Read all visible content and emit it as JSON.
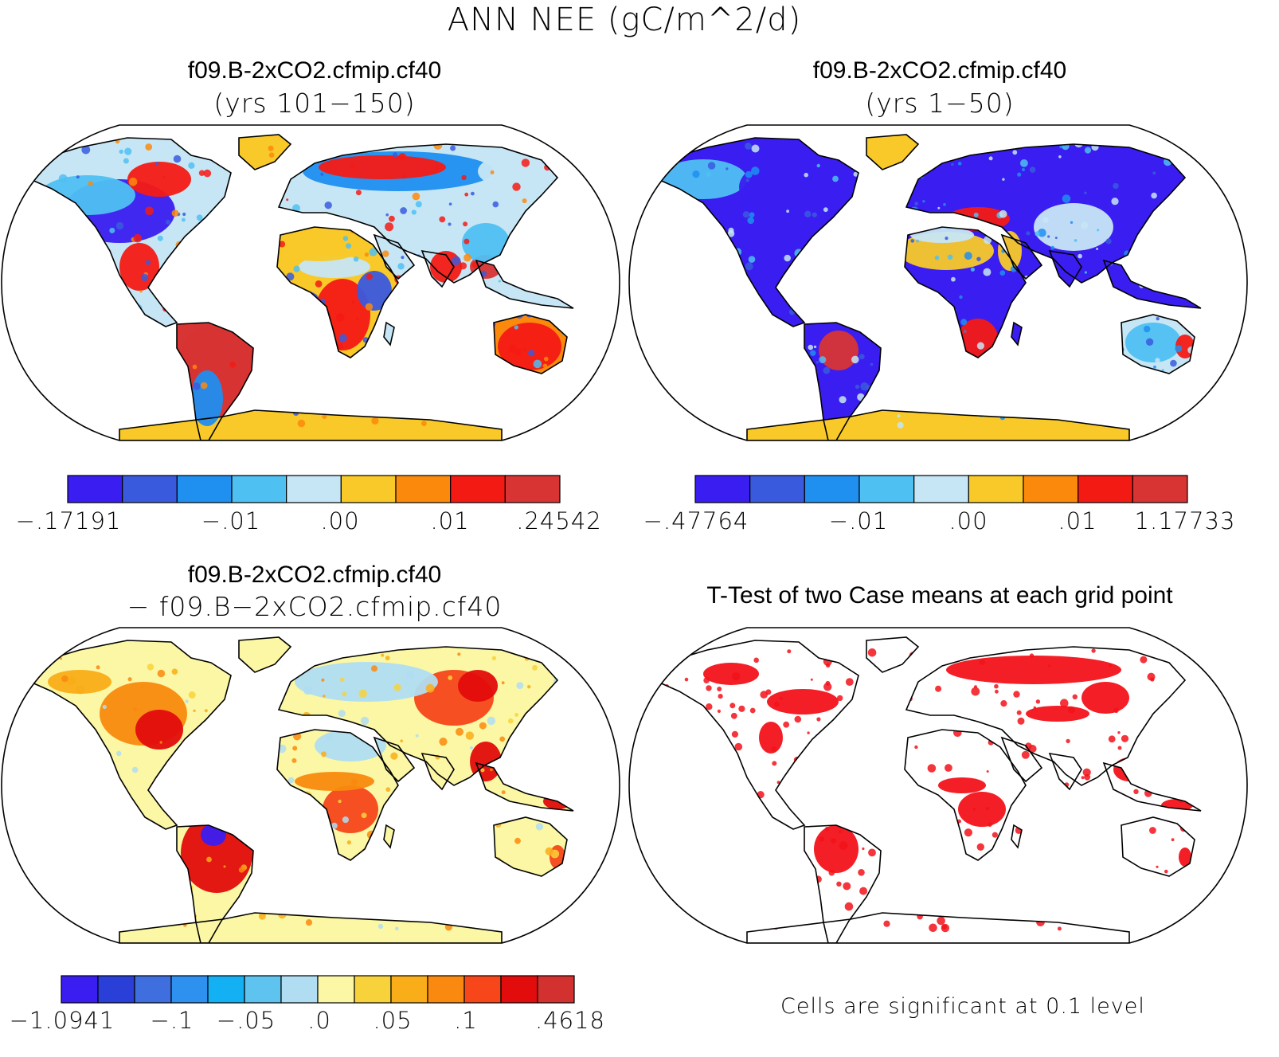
{
  "figure": {
    "title": "ANN NEE (gC/m^2/d)"
  },
  "panels": [
    {
      "title": "f09.B-2xCO2.cfmip.cf40",
      "subtitle": "(yrs 101−150)",
      "colorbar": {
        "colors": [
          "#3a1df0",
          "#3a5ade",
          "#1f8ff0",
          "#4fc0f2",
          "#c6e6f5",
          "#f8c928",
          "#fb8a0c",
          "#f41a14",
          "#d83434"
        ],
        "labels": [
          "−.17191",
          "−.01",
          ".00",
          ".01",
          ".24542"
        ]
      }
    },
    {
      "title": "f09.B-2xCO2.cfmip.cf40",
      "subtitle": "(yrs 1−50)",
      "colorbar": {
        "colors": [
          "#3a1df0",
          "#3a5ade",
          "#1f8ff0",
          "#4fc0f2",
          "#c6e6f5",
          "#f8c928",
          "#fb8a0c",
          "#f41a14",
          "#d83434"
        ],
        "labels": [
          "−.47764",
          "−.01",
          ".00",
          ".01",
          "1.17733"
        ]
      }
    },
    {
      "title": "f09.B-2xCO2.cfmip.cf40",
      "subtitle": "− f09.B−2xCO2.cfmip.cf40",
      "colorbar": {
        "colors": [
          "#3a1df0",
          "#2a3fd8",
          "#3f6ede",
          "#2e90ef",
          "#13b0f4",
          "#5ec3ee",
          "#b0ddf2",
          "#fbf7a4",
          "#f8d23b",
          "#f9ad18",
          "#f98a0f",
          "#f6461a",
          "#e30c0c",
          "#d33030"
        ],
        "labels": [
          "−1.0941",
          "−.1",
          "−.05",
          ".0",
          ".05",
          ".1",
          ".4618"
        ]
      }
    },
    {
      "title": "T-Test of two Case means at each grid point",
      "note": "Cells are significant at 0.1 level",
      "significant_color": "#f2121a"
    }
  ]
}
